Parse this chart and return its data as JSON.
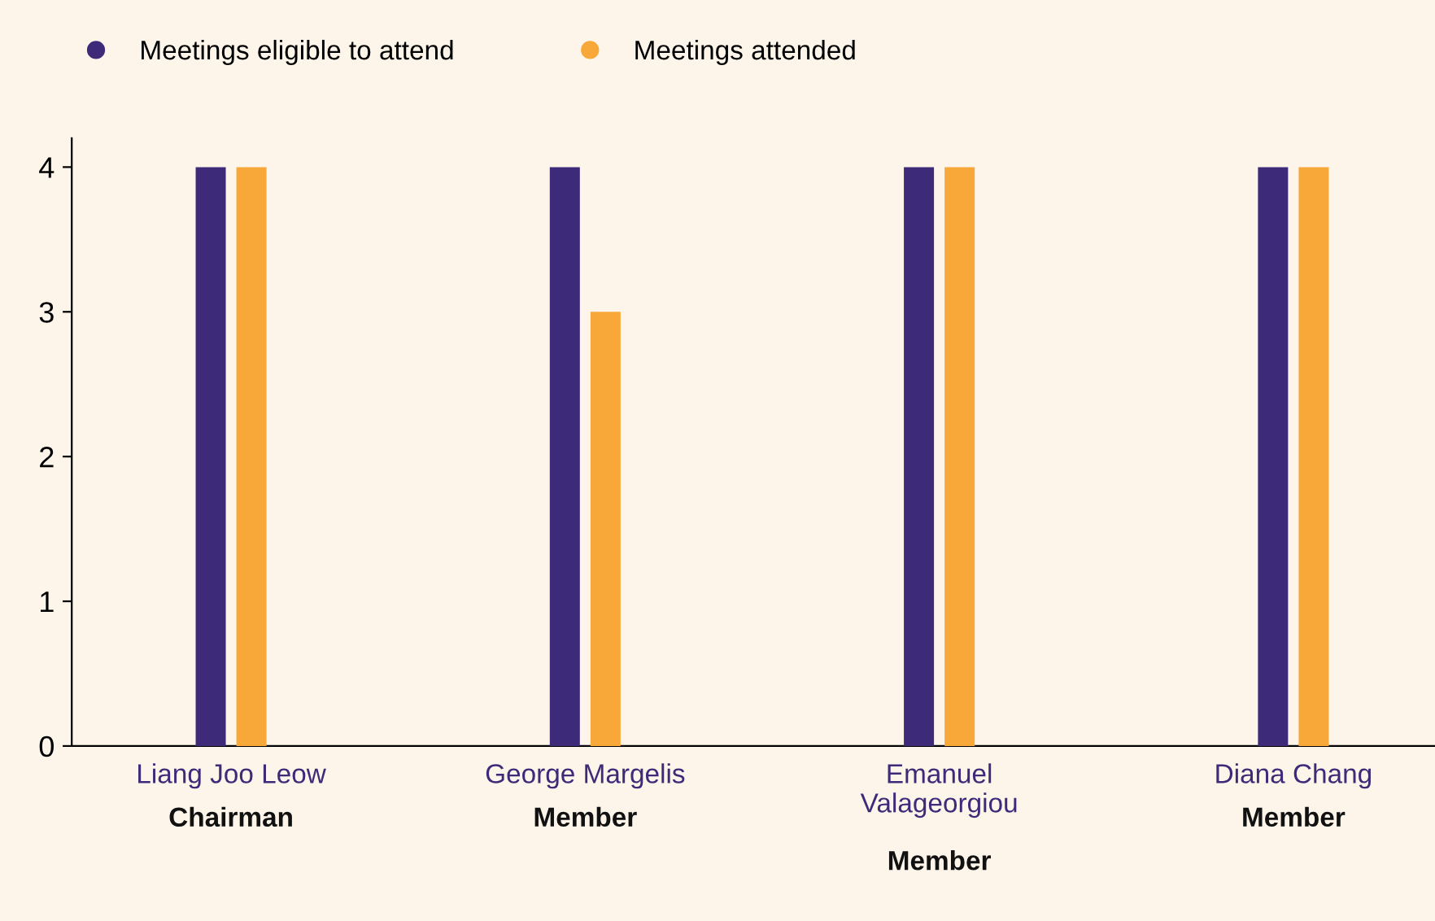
{
  "chart_data": {
    "type": "bar",
    "categories": [
      "Liang Joo Leow\nChairman",
      "George Margelis\nMember",
      "Emanuel\nValageorgiou\nMember",
      "Diana Chang\nMember"
    ],
    "series": [
      {
        "name": "Meetings eligible to attend",
        "color": "#3d2a78",
        "values": [
          4,
          4,
          4,
          4
        ]
      },
      {
        "name": "Meetings attended",
        "color": "#f7a838",
        "values": [
          4,
          3,
          4,
          4
        ]
      }
    ],
    "ylim": [
      0,
      4.2
    ],
    "yticks": [
      0,
      1,
      2,
      3,
      4
    ],
    "grid": false,
    "legend": "top left"
  }
}
